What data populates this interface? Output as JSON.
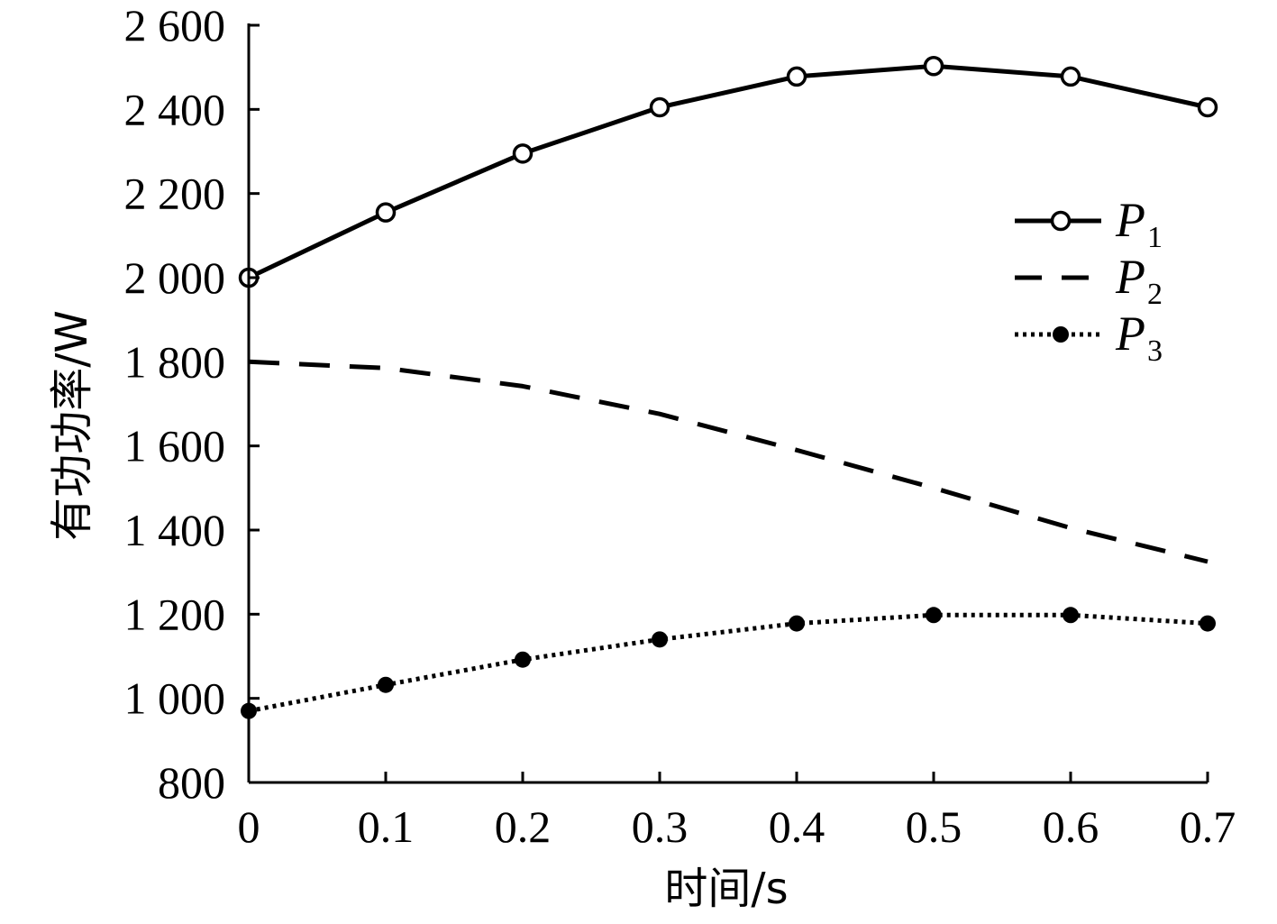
{
  "chart_data": {
    "type": "line",
    "xlabel": "时间/s",
    "ylabel": "有功功率/W",
    "x": [
      0,
      0.1,
      0.2,
      0.3,
      0.4,
      0.5,
      0.6,
      0.7
    ],
    "xlim": [
      0,
      0.7
    ],
    "ylim": [
      800,
      2600
    ],
    "x_ticks": [
      0,
      0.1,
      0.2,
      0.3,
      0.4,
      0.5,
      0.6,
      0.7
    ],
    "x_tick_labels": [
      "0",
      "0.1",
      "0.2",
      "0.3",
      "0.4",
      "0.5",
      "0.6",
      "0.7"
    ],
    "y_ticks": [
      800,
      1000,
      1200,
      1400,
      1600,
      1800,
      2000,
      2200,
      2400,
      2600
    ],
    "y_tick_labels": [
      "800",
      "1 000",
      "1 200",
      "1 400",
      "1 600",
      "1 800",
      "2 000",
      "2 200",
      "2 400",
      "2 600"
    ],
    "grid": false,
    "legend_position": "right",
    "series": [
      {
        "name": "P",
        "subscript": "1",
        "line_style": "solid",
        "marker": "open-circle",
        "values": [
          2000,
          2155,
          2295,
          2405,
          2478,
          2503,
          2478,
          2405
        ]
      },
      {
        "name": "P",
        "subscript": "2",
        "line_style": "dashed",
        "marker": "none",
        "values": [
          1800,
          1785,
          1742,
          1676,
          1590,
          1500,
          1405,
          1325
        ]
      },
      {
        "name": "P",
        "subscript": "3",
        "line_style": "dotted",
        "marker": "filled-circle",
        "values": [
          970,
          1032,
          1092,
          1140,
          1178,
          1198,
          1198,
          1178
        ]
      }
    ]
  }
}
